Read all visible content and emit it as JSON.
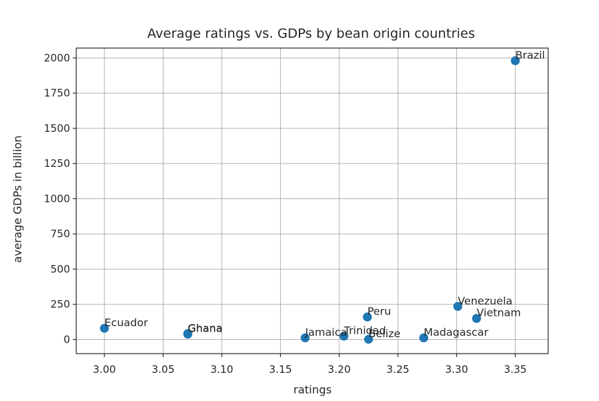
{
  "chart_data": {
    "type": "scatter",
    "title": "Average ratings vs. GDPs by bean origin countries",
    "xlabel": "ratings",
    "ylabel": "average GDPs in billion",
    "xlim": [
      2.976,
      3.378
    ],
    "ylim": [
      -100,
      2070
    ],
    "x_ticks": [
      "3.00",
      "3.05",
      "3.10",
      "3.15",
      "3.20",
      "3.25",
      "3.30",
      "3.35"
    ],
    "y_ticks": [
      "0",
      "250",
      "500",
      "750",
      "1000",
      "1250",
      "1500",
      "1750",
      "2000"
    ],
    "grid": true,
    "marker_color": "#1f77b4",
    "points": [
      {
        "label": "Ecuador",
        "x": 3.0,
        "y": 80
      },
      {
        "label": "Ghana",
        "x": 3.071,
        "y": 38
      },
      {
        "label": "Ghana",
        "x": 3.071,
        "y": 42
      },
      {
        "label": "Jamaica",
        "x": 3.171,
        "y": 12
      },
      {
        "label": "Trinidad",
        "x": 3.204,
        "y": 24
      },
      {
        "label": "Peru",
        "x": 3.224,
        "y": 160
      },
      {
        "label": "Belize",
        "x": 3.225,
        "y": 2
      },
      {
        "label": "Madagascar",
        "x": 3.272,
        "y": 12
      },
      {
        "label": "Venezuela",
        "x": 3.301,
        "y": 235
      },
      {
        "label": "Vietnam",
        "x": 3.317,
        "y": 150
      },
      {
        "label": "Brazil",
        "x": 3.35,
        "y": 1980
      }
    ]
  }
}
